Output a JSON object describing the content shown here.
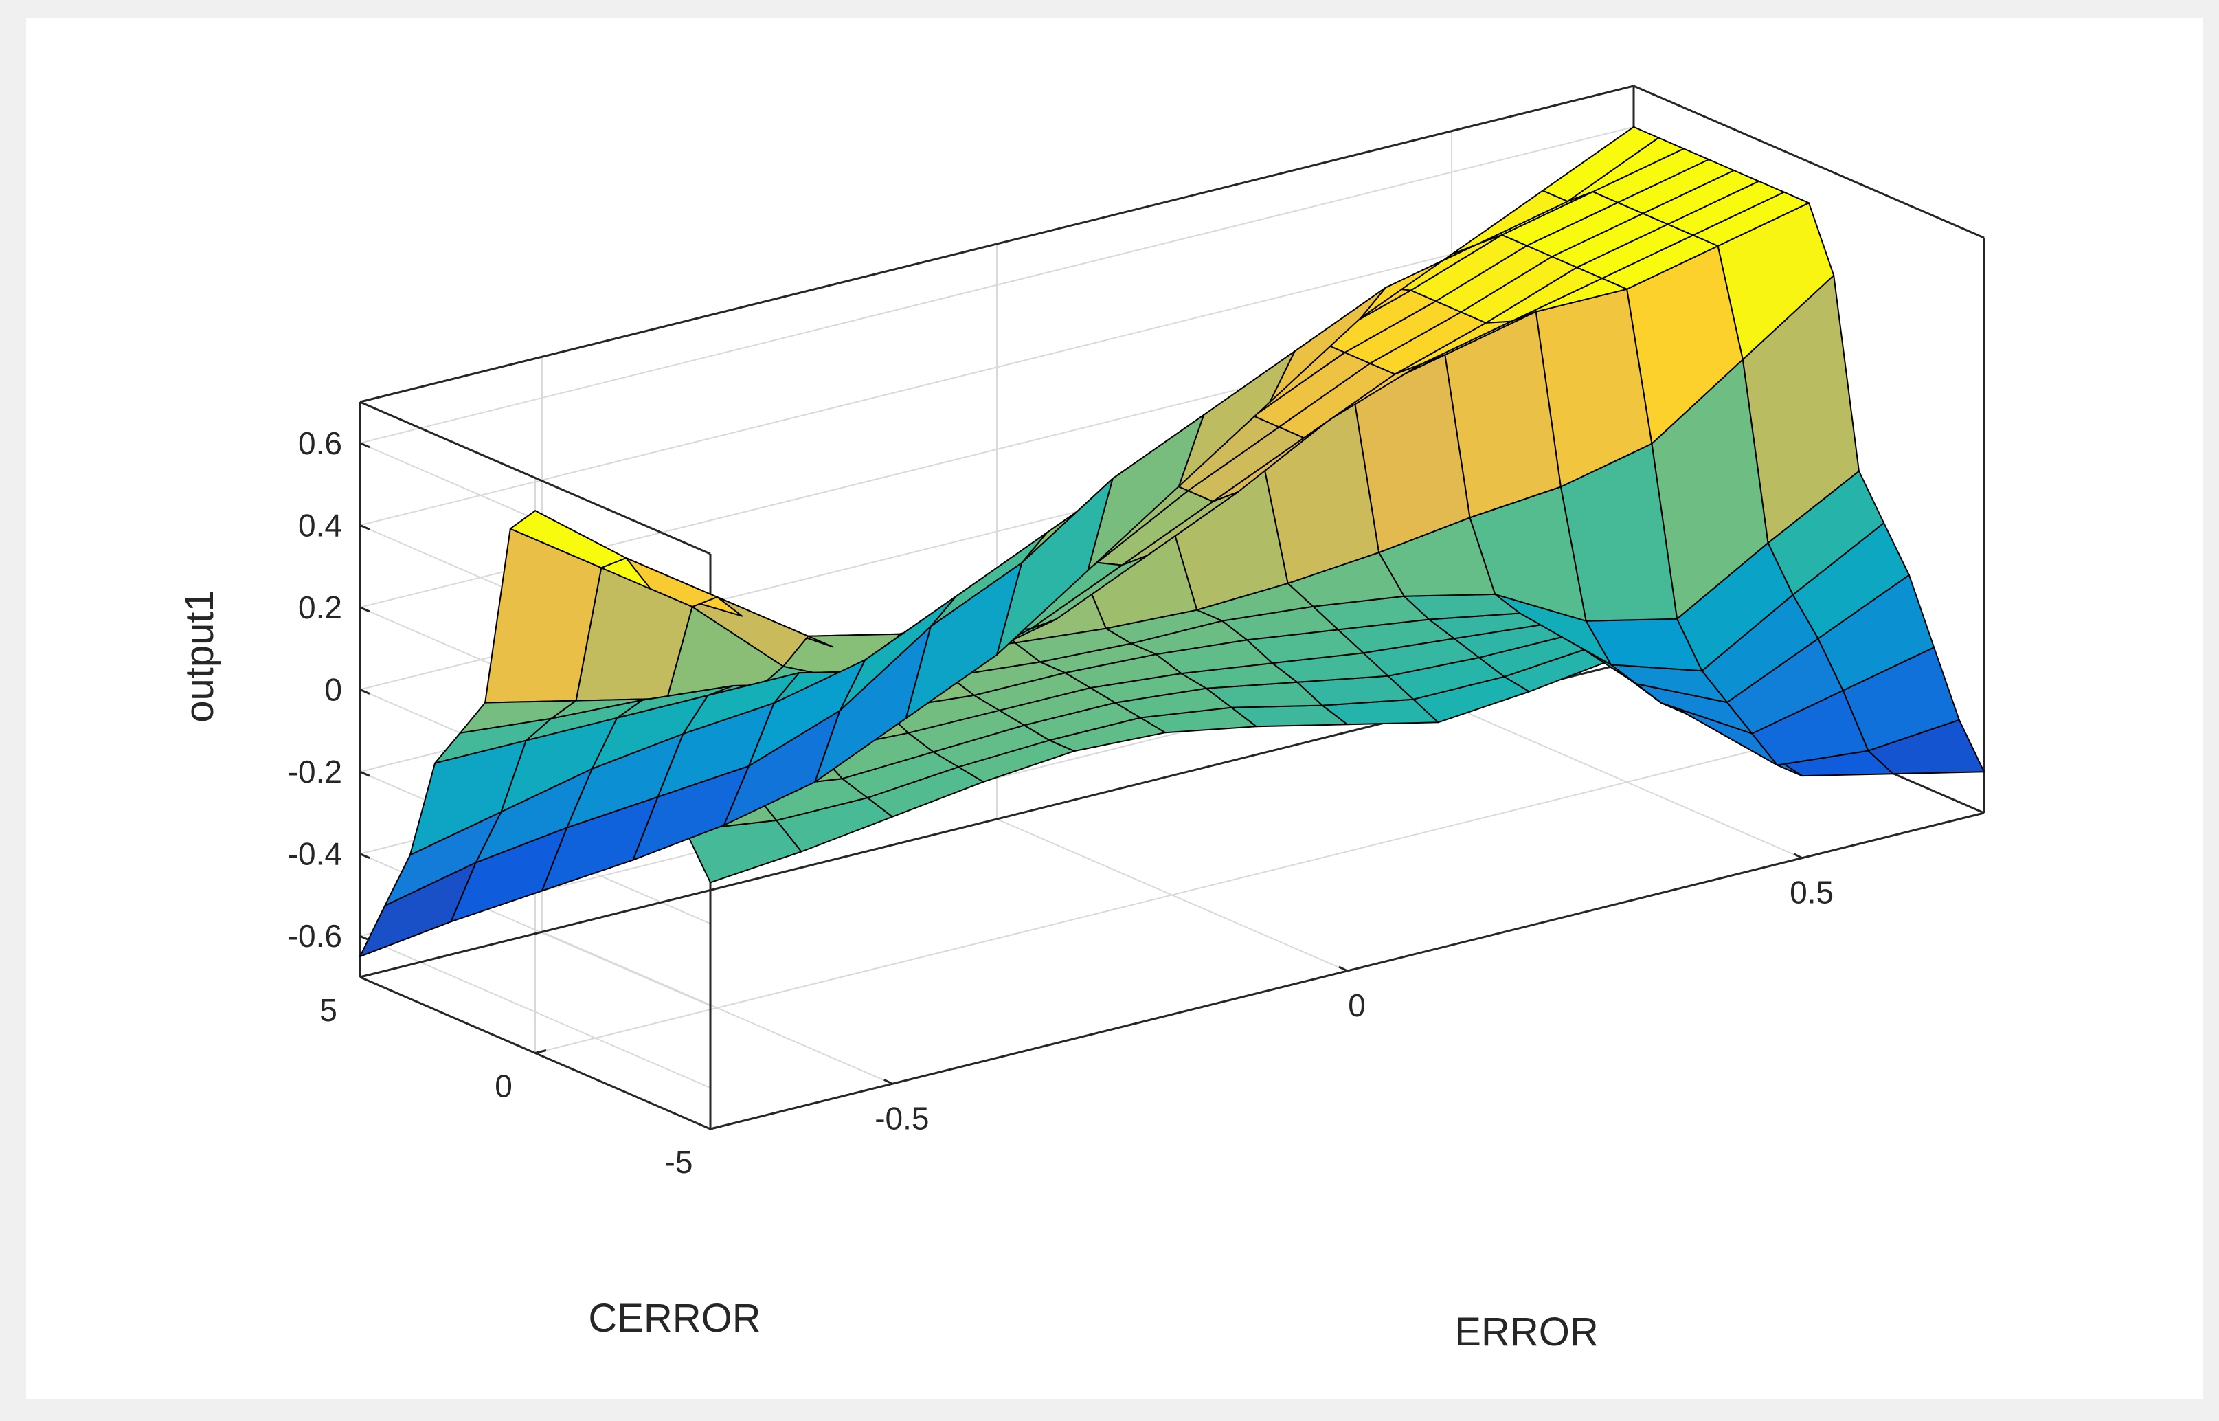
{
  "chart_data": {
    "type": "surface",
    "title": "",
    "xlabel": "ERROR",
    "ylabel": "CERROR",
    "zlabel": "output1",
    "xlim": [
      -0.7,
      0.7
    ],
    "ylim": [
      -5,
      5
    ],
    "zlim": [
      -0.7,
      0.7
    ],
    "x_ticks": [
      -0.5,
      0,
      0.5
    ],
    "x_tick_labels": [
      "-0.5",
      "0",
      "0.5"
    ],
    "y_ticks": [
      -5,
      0,
      5
    ],
    "y_tick_labels": [
      "-5",
      "0",
      "5"
    ],
    "z_ticks": [
      -0.6,
      -0.4,
      -0.2,
      0,
      0.2,
      0.4,
      0.6
    ],
    "z_tick_labels": [
      "-0.6",
      "-0.4",
      "-0.2",
      "0",
      "0.2",
      "0.4",
      "0.6"
    ],
    "grid": true,
    "colormap": "parula",
    "x": [
      -0.7,
      -0.6,
      -0.5,
      -0.4,
      -0.3,
      -0.2,
      -0.1,
      0,
      0.1,
      0.2,
      0.3,
      0.4,
      0.5,
      0.6,
      0.7
    ],
    "y": [
      -5,
      -4.29,
      -3.57,
      -2.86,
      -2.14,
      -1.43,
      -0.71,
      0,
      0.71,
      1.43,
      2.14,
      2.86,
      3.57,
      4.29,
      5
    ],
    "z": [
      [
        -0.1,
        -0.08,
        -0.05,
        -0.02,
        0.0,
        -0.01,
        -0.05,
        -0.1,
        -0.15,
        -0.13,
        -0.1,
        -0.3,
        -0.5,
        -0.55,
        -0.6
      ],
      [
        0.0,
        -0.03,
        -0.03,
        -0.01,
        0.0,
        0.0,
        -0.03,
        -0.08,
        -0.12,
        -0.12,
        -0.1,
        -0.32,
        -0.5,
        -0.52,
        -0.5
      ],
      [
        0.1,
        0.02,
        -0.01,
        0.0,
        0.01,
        0.01,
        -0.01,
        -0.05,
        -0.09,
        -0.1,
        -0.1,
        -0.32,
        -0.45,
        -0.4,
        -0.35
      ],
      [
        0.22,
        0.1,
        0.03,
        0.02,
        0.02,
        0.02,
        0.0,
        -0.03,
        -0.06,
        -0.08,
        -0.1,
        -0.3,
        -0.4,
        -0.3,
        -0.2
      ],
      [
        0.35,
        0.22,
        0.12,
        0.05,
        0.03,
        0.03,
        0.02,
        0.0,
        -0.03,
        -0.06,
        -0.1,
        -0.28,
        -0.35,
        -0.22,
        -0.1
      ],
      [
        0.45,
        0.32,
        0.2,
        0.1,
        0.05,
        0.03,
        0.02,
        0.02,
        0.0,
        -0.03,
        -0.08,
        -0.2,
        -0.25,
        -0.12,
        0.0
      ],
      [
        0.55,
        0.4,
        0.28,
        0.15,
        0.08,
        0.05,
        0.03,
        0.02,
        0.03,
        0.05,
        0.08,
        0.1,
        0.15,
        0.3,
        0.45
      ],
      [
        0.62,
        0.45,
        0.3,
        0.15,
        0.1,
        0.1,
        0.15,
        0.2,
        0.3,
        0.4,
        0.45,
        0.5,
        0.5,
        0.55,
        0.6
      ],
      [
        0.55,
        0.4,
        0.25,
        0.05,
        -0.05,
        -0.05,
        0.0,
        0.1,
        0.2,
        0.32,
        0.4,
        0.45,
        0.5,
        0.55,
        0.6
      ],
      [
        0.1,
        0.05,
        0.0,
        -0.03,
        -0.08,
        -0.1,
        -0.05,
        0.05,
        0.15,
        0.25,
        0.35,
        0.42,
        0.5,
        0.55,
        0.6
      ],
      [
        0.0,
        -0.02,
        -0.03,
        -0.05,
        -0.1,
        -0.15,
        -0.08,
        0.03,
        0.15,
        0.25,
        0.35,
        0.42,
        0.5,
        0.55,
        0.6
      ],
      [
        -0.1,
        -0.1,
        -0.1,
        -0.1,
        -0.1,
        -0.15,
        -0.05,
        0.05,
        0.15,
        0.25,
        0.35,
        0.42,
        0.5,
        0.55,
        0.6
      ],
      [
        -0.35,
        -0.3,
        -0.25,
        -0.22,
        -0.2,
        -0.15,
        -0.05,
        0.05,
        0.15,
        0.25,
        0.35,
        0.42,
        0.5,
        0.55,
        0.6
      ],
      [
        -0.5,
        -0.45,
        -0.42,
        -0.4,
        -0.38,
        -0.3,
        -0.15,
        -0.05,
        0.1,
        0.2,
        0.3,
        0.4,
        0.45,
        0.5,
        0.6
      ],
      [
        -0.65,
        -0.62,
        -0.6,
        -0.58,
        -0.55,
        -0.5,
        -0.4,
        -0.3,
        -0.15,
        0.0,
        0.15,
        0.3,
        0.4,
        0.5,
        0.6
      ]
    ]
  }
}
